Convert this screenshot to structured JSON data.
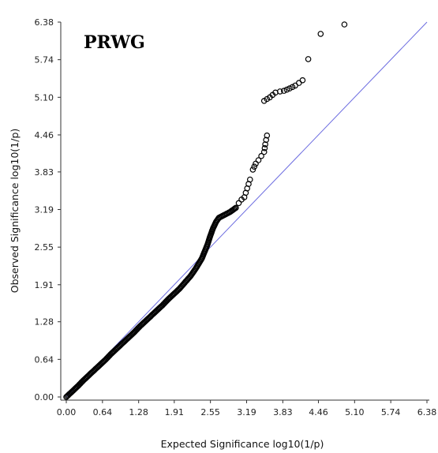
{
  "chart_data": {
    "type": "scatter",
    "title": "PRWG",
    "xlabel": "Expected Significance log10(1/p)",
    "ylabel": "Observed Significance log10(1/p)",
    "xlim": [
      0,
      6.38
    ],
    "ylim": [
      0,
      6.38
    ],
    "x_ticks": [
      "0.00",
      "0.64",
      "1.28",
      "1.91",
      "2.55",
      "3.19",
      "3.83",
      "4.46",
      "5.10",
      "5.74",
      "6.38"
    ],
    "y_ticks": [
      "0.00",
      "0.64",
      "1.28",
      "1.91",
      "2.55",
      "3.19",
      "3.83",
      "4.46",
      "5.10",
      "5.74",
      "6.38"
    ],
    "grid": false,
    "reference_line": {
      "from": [
        0,
        0
      ],
      "to": [
        6.38,
        6.38
      ],
      "color": "#6b6be0"
    },
    "marker": "open-circle",
    "marker_color": "#000000",
    "series": [
      {
        "points": [
          [
            0.0,
            0.0
          ],
          [
            0.1,
            0.09
          ],
          [
            0.2,
            0.18
          ],
          [
            0.3,
            0.28
          ],
          [
            0.4,
            0.37
          ],
          [
            0.5,
            0.46
          ],
          [
            0.6,
            0.55
          ],
          [
            0.7,
            0.64
          ],
          [
            0.8,
            0.74
          ],
          [
            0.9,
            0.83
          ],
          [
            1.0,
            0.92
          ],
          [
            1.1,
            1.01
          ],
          [
            1.2,
            1.1
          ],
          [
            1.3,
            1.2
          ],
          [
            1.4,
            1.29
          ],
          [
            1.5,
            1.38
          ],
          [
            1.6,
            1.47
          ],
          [
            1.7,
            1.56
          ],
          [
            1.8,
            1.66
          ],
          [
            1.9,
            1.75
          ],
          [
            2.0,
            1.84
          ],
          [
            2.1,
            1.95
          ],
          [
            2.2,
            2.06
          ],
          [
            2.3,
            2.2
          ],
          [
            2.4,
            2.36
          ],
          [
            2.5,
            2.6
          ],
          [
            2.55,
            2.75
          ],
          [
            2.6,
            2.88
          ],
          [
            2.65,
            2.98
          ],
          [
            2.7,
            3.05
          ],
          [
            2.8,
            3.1
          ],
          [
            2.9,
            3.15
          ],
          [
            3.0,
            3.22
          ],
          [
            3.05,
            3.3
          ],
          [
            3.1,
            3.36
          ],
          [
            3.15,
            3.4
          ],
          [
            3.2,
            3.55
          ],
          [
            3.25,
            3.7
          ],
          [
            3.3,
            3.87
          ],
          [
            3.35,
            3.97
          ],
          [
            3.4,
            4.03
          ],
          [
            3.45,
            4.1
          ],
          [
            3.5,
            4.17
          ],
          [
            3.52,
            4.3
          ],
          [
            3.55,
            4.45
          ],
          [
            3.5,
            5.04
          ],
          [
            3.55,
            5.07
          ],
          [
            3.6,
            5.1
          ],
          [
            3.65,
            5.14
          ],
          [
            3.7,
            5.18
          ],
          [
            3.78,
            5.2
          ],
          [
            3.85,
            5.21
          ],
          [
            3.95,
            5.25
          ],
          [
            4.05,
            5.3
          ],
          [
            4.18,
            5.39
          ],
          [
            4.28,
            5.75
          ],
          [
            4.5,
            6.18
          ],
          [
            4.92,
            6.34
          ]
        ]
      }
    ]
  }
}
